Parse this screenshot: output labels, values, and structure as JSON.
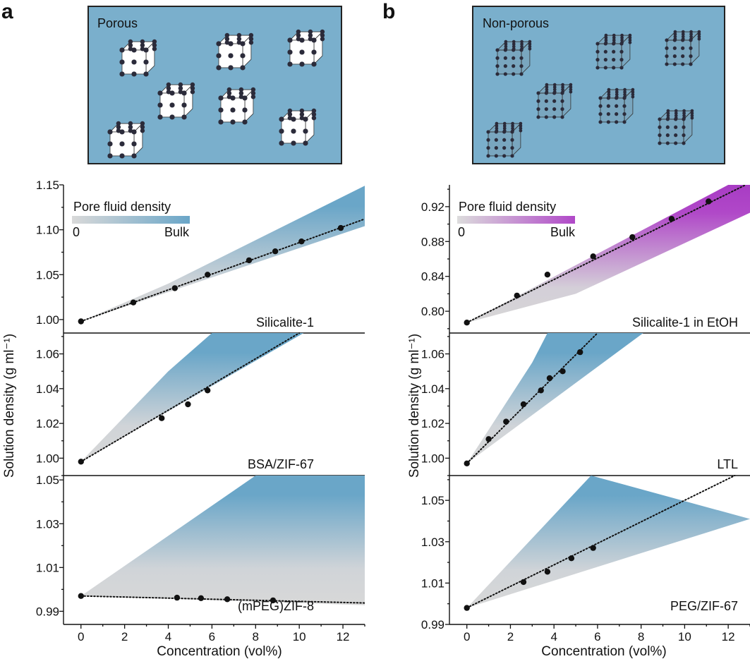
{
  "panel_letters": {
    "a": "a",
    "b": "b"
  },
  "schematics": {
    "a": {
      "label": "Porous",
      "style": "open"
    },
    "b": {
      "label": "Non-porous",
      "style": "dense"
    }
  },
  "colors": {
    "schematic_bg": "#7aafcc",
    "porous_gradient": "#6aa6c8",
    "ethanol_gradient": "#b048c8",
    "empty_pore": "#d6d6d6",
    "points": "#111111"
  },
  "x_axis_label": "Concentration (vol%)",
  "y_axis_label": "Solution density (g ml⁻¹)",
  "colorbars": {
    "a": {
      "title": "Pore fluid density",
      "min_label": "0",
      "max_label": "Bulk"
    },
    "b": {
      "title": "Pore fluid density",
      "min_label": "0",
      "max_label": "Bulk"
    }
  },
  "chart_data": [
    {
      "type": "scatter",
      "panel": "a",
      "label": "Silicalite-1",
      "fill": "porous",
      "xlim": [
        -0.8,
        13
      ],
      "ylim": [
        0.985,
        1.15
      ],
      "yticks": [
        1.0,
        1.05,
        1.1,
        1.15
      ],
      "ytick_labels": [
        "1.00",
        "1.05",
        "1.10",
        "1.15"
      ],
      "points": [
        [
          0,
          0.998
        ],
        [
          2.4,
          1.019
        ],
        [
          4.3,
          1.035
        ],
        [
          5.8,
          1.05
        ],
        [
          7.7,
          1.066
        ],
        [
          8.9,
          1.076
        ],
        [
          10.1,
          1.087
        ],
        [
          11.9,
          1.102
        ]
      ],
      "fit": [
        [
          0,
          0.998
        ],
        [
          13,
          1.112
        ]
      ],
      "upper": [
        [
          0,
          0.998
        ],
        [
          4,
          1.04
        ],
        [
          13,
          1.149
        ]
      ],
      "lower": [
        [
          0,
          0.998
        ],
        [
          13,
          1.104
        ]
      ]
    },
    {
      "type": "scatter",
      "panel": "a",
      "label": "BSA/ZIF-67",
      "fill": "porous",
      "xlim": [
        -0.8,
        13
      ],
      "ylim": [
        0.99,
        1.072
      ],
      "yticks": [
        1.0,
        1.02,
        1.04,
        1.06
      ],
      "ytick_labels": [
        "1.00",
        "1.02",
        "1.04",
        "1.06"
      ],
      "points": [
        [
          0,
          0.998
        ],
        [
          3.7,
          1.023
        ],
        [
          4.9,
          1.031
        ],
        [
          5.8,
          1.039
        ]
      ],
      "fit": [
        [
          0,
          0.998
        ],
        [
          10,
          1.072
        ]
      ],
      "upper": [
        [
          0,
          0.998
        ],
        [
          4,
          1.05
        ],
        [
          6,
          1.072
        ]
      ],
      "lower": [
        [
          0,
          0.998
        ],
        [
          10.2,
          1.072
        ]
      ]
    },
    {
      "type": "scatter",
      "panel": "a",
      "label": "(mPEG)ZIF-8",
      "fill": "porous",
      "xlim": [
        -0.8,
        13
      ],
      "ylim": [
        0.984,
        1.052
      ],
      "yticks": [
        0.99,
        1.01,
        1.03,
        1.05
      ],
      "ytick_labels": [
        "0.99",
        "1.01",
        "1.03",
        "1.05"
      ],
      "points": [
        [
          0,
          0.997
        ],
        [
          4.4,
          0.9962
        ],
        [
          5.5,
          0.996
        ],
        [
          6.7,
          0.9955
        ],
        [
          8.8,
          0.995
        ]
      ],
      "fit": [
        [
          0,
          0.997
        ],
        [
          13,
          0.9938
        ]
      ],
      "upper": [
        [
          0,
          0.997
        ],
        [
          8,
          1.052
        ],
        [
          13,
          1.052
        ]
      ],
      "lower": [
        [
          0,
          0.997
        ],
        [
          13,
          0.9928
        ]
      ]
    },
    {
      "type": "scatter",
      "panel": "b",
      "label": "Silicalite-1 in EtOH",
      "fill": "ethanol",
      "xlim": [
        -0.8,
        13
      ],
      "ylim": [
        0.775,
        0.945
      ],
      "yticks": [
        0.8,
        0.84,
        0.88,
        0.92
      ],
      "ytick_labels": [
        "0.80",
        "0.84",
        "0.88",
        "0.92"
      ],
      "points": [
        [
          0,
          0.787
        ],
        [
          2.3,
          0.818
        ],
        [
          3.7,
          0.842
        ],
        [
          5.8,
          0.863
        ],
        [
          7.6,
          0.885
        ],
        [
          9.4,
          0.906
        ],
        [
          11.1,
          0.926
        ]
      ],
      "fit": [
        [
          0,
          0.787
        ],
        [
          12.8,
          0.945
        ]
      ],
      "upper": [
        [
          0,
          0.787
        ],
        [
          12,
          0.945
        ],
        [
          13,
          0.945
        ]
      ],
      "lower": [
        [
          0,
          0.787
        ],
        [
          5,
          0.82
        ],
        [
          13,
          0.913
        ]
      ]
    },
    {
      "type": "scatter",
      "panel": "b",
      "label": "LTL",
      "fill": "porous",
      "xlim": [
        -0.8,
        13
      ],
      "ylim": [
        0.99,
        1.072
      ],
      "yticks": [
        1.0,
        1.02,
        1.04,
        1.06
      ],
      "ytick_labels": [
        "1.00",
        "1.02",
        "1.04",
        "1.06"
      ],
      "points": [
        [
          0,
          0.997
        ],
        [
          1,
          1.011
        ],
        [
          1.8,
          1.021
        ],
        [
          2.6,
          1.031
        ],
        [
          3.4,
          1.039
        ],
        [
          3.8,
          1.046
        ],
        [
          4.4,
          1.05
        ],
        [
          5.2,
          1.061
        ]
      ],
      "fit": [
        [
          0,
          0.997
        ],
        [
          6,
          1.072
        ]
      ],
      "upper": [
        [
          0,
          0.997
        ],
        [
          3,
          1.055
        ],
        [
          3.7,
          1.072
        ]
      ],
      "lower": [
        [
          0,
          0.997
        ],
        [
          8.1,
          1.072
        ]
      ]
    },
    {
      "type": "scatter",
      "panel": "b",
      "label": "PEG/ZIF-67",
      "fill": "porous",
      "xlim": [
        -0.8,
        13
      ],
      "ylim": [
        0.99,
        1.062
      ],
      "yticks": [
        0.99,
        1.01,
        1.03,
        1.05
      ],
      "ytick_labels": [
        "0.99",
        "1.01",
        "1.03",
        "1.05"
      ],
      "points": [
        [
          0,
          0.998
        ],
        [
          2.6,
          1.0105
        ],
        [
          3.7,
          1.0155
        ],
        [
          4.8,
          1.022
        ],
        [
          5.8,
          1.027
        ]
      ],
      "fit": [
        [
          0,
          0.998
        ],
        [
          12.3,
          1.062
        ]
      ],
      "upper": [
        [
          0,
          0.998
        ],
        [
          5.7,
          1.062
        ]
      ],
      "lower": [
        [
          0,
          0.998
        ],
        [
          13,
          1.041
        ]
      ]
    }
  ],
  "x_ticks": [
    0,
    2,
    4,
    6,
    8,
    10,
    12
  ],
  "x_tick_labels": [
    "0",
    "2",
    "4",
    "6",
    "8",
    "10",
    "12"
  ]
}
